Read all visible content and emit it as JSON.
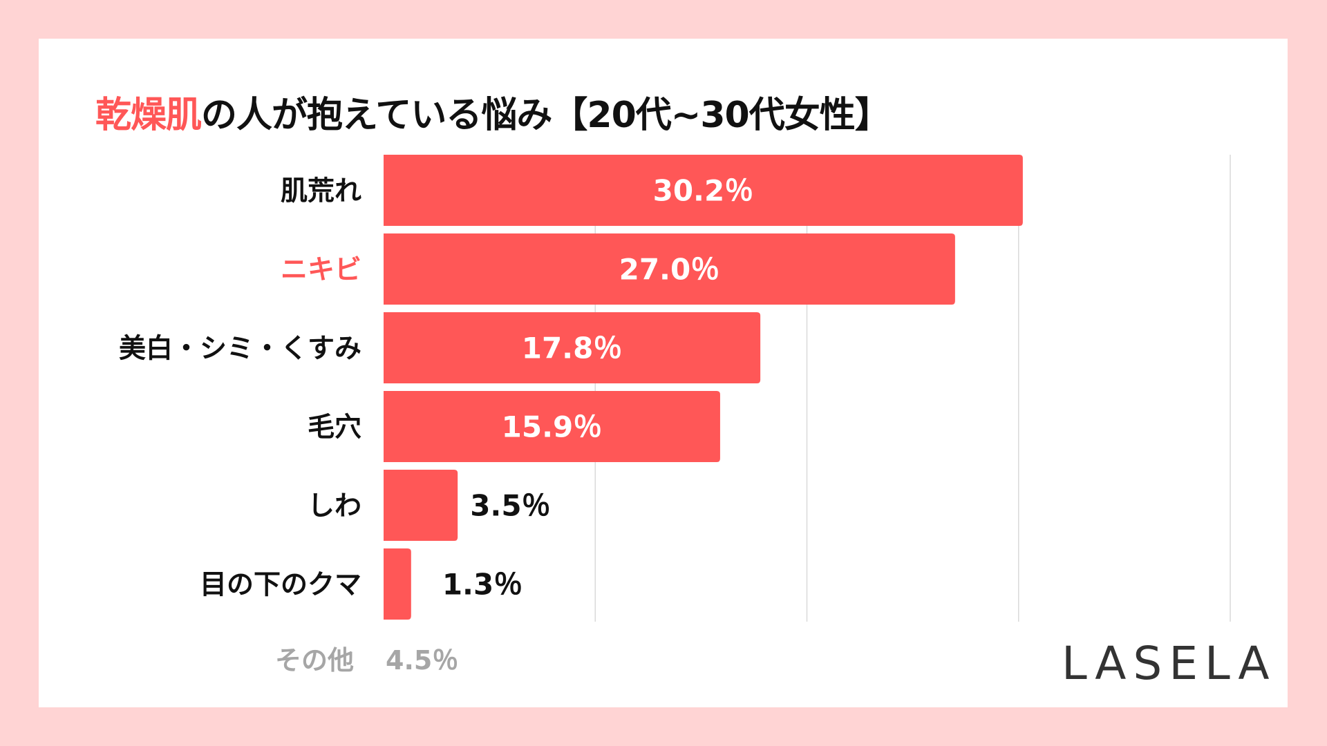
{
  "title": {
    "highlight": "乾燥肌",
    "rest": "の人が抱えている悩み【20代~30代女性】"
  },
  "chart_data": {
    "type": "bar",
    "orientation": "horizontal",
    "categories": [
      "肌荒れ",
      "ニキビ",
      "美白・シミ・くすみ",
      "毛穴",
      "しわ",
      "目の下のクマ"
    ],
    "values": [
      30.2,
      27.0,
      17.8,
      15.9,
      3.5,
      1.3
    ],
    "value_labels": [
      "30.2％",
      "27.0％",
      "17.8％",
      "15.9％",
      "3.5％",
      "1.3％"
    ],
    "highlight_category": "ニキビ",
    "xlim": [
      0,
      40
    ],
    "grid": true,
    "bar_color": "#ff5757",
    "highlight_color": "#ff5757"
  },
  "other": {
    "label": "その他",
    "value": "4.5％"
  },
  "logo": "LASELA"
}
